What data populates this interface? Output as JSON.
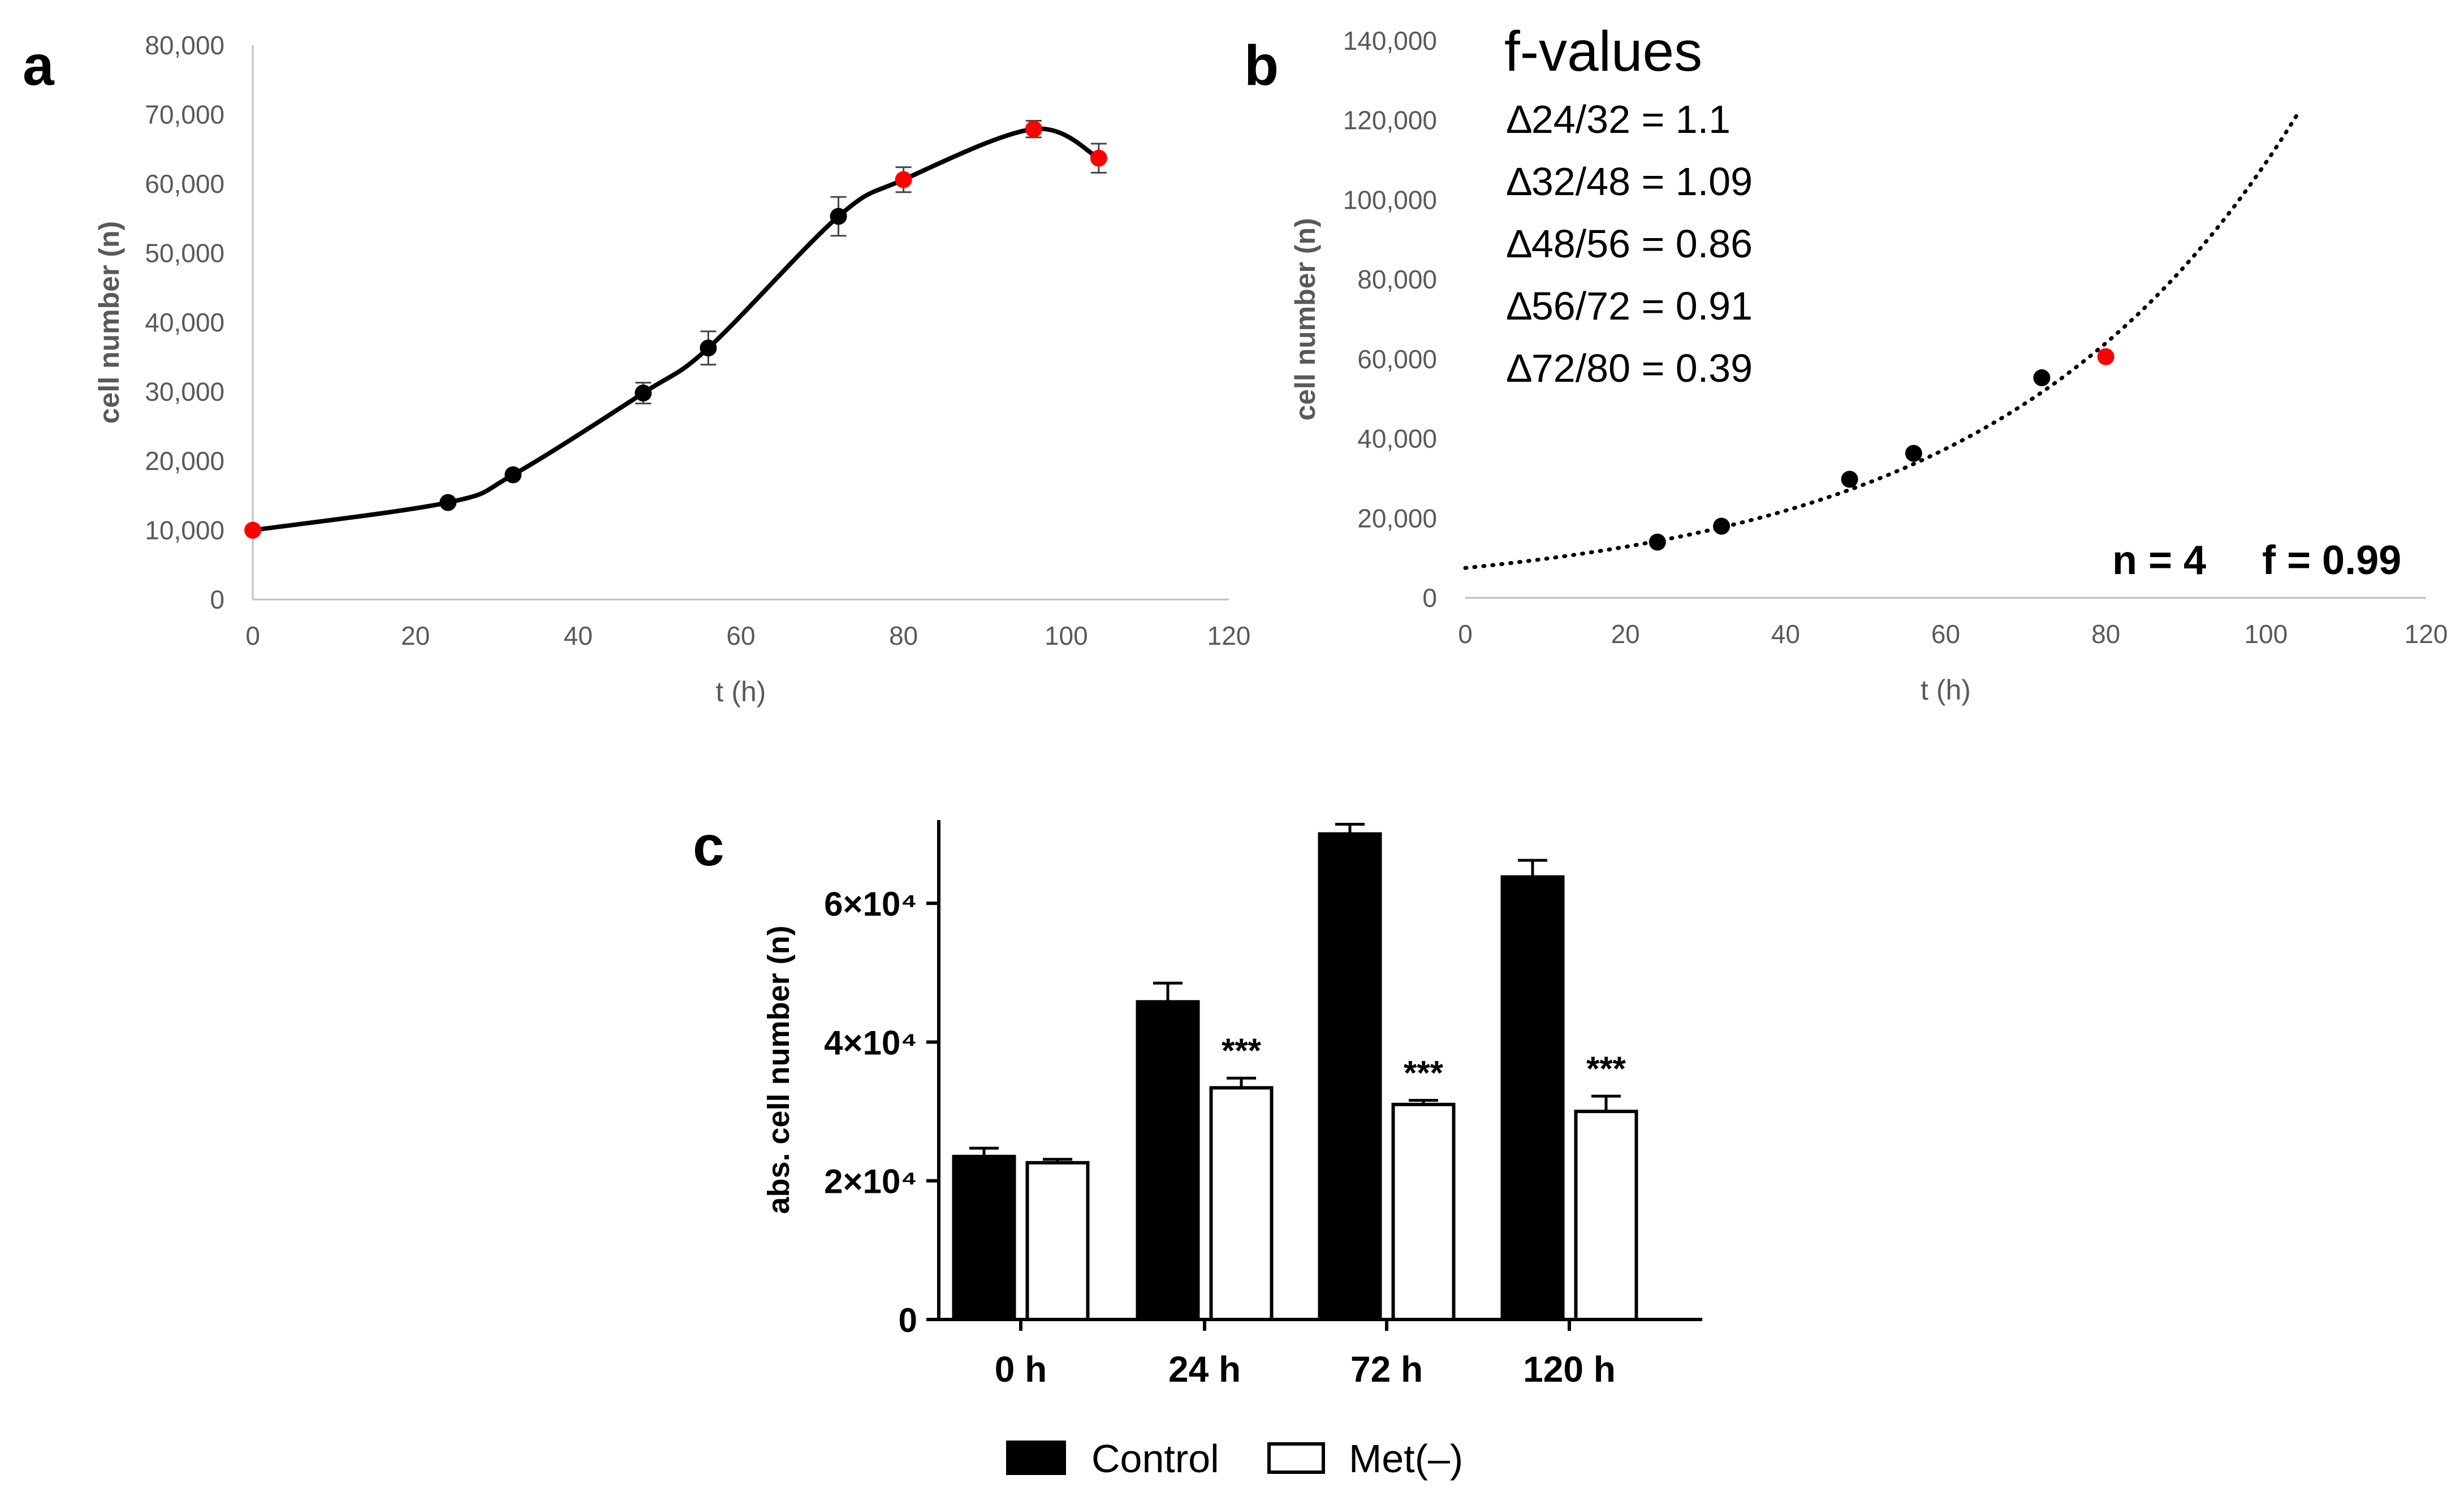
{
  "chart_data": [
    {
      "panel": "a",
      "type": "line",
      "xlabel": "t (h)",
      "ylabel": "cell number (n)",
      "xlim": [
        0,
        120
      ],
      "ylim": [
        0,
        80000
      ],
      "xticks": [
        0,
        20,
        40,
        60,
        80,
        100,
        120
      ],
      "yticks": [
        0,
        10000,
        20000,
        30000,
        40000,
        50000,
        60000,
        70000,
        80000
      ],
      "ytick_labels": [
        "0",
        "10,000",
        "20,000",
        "30,000",
        "40,000",
        "50,000",
        "60,000",
        "70,000",
        "80,000"
      ],
      "points": [
        {
          "x": 0,
          "y": 10000,
          "err": 0,
          "color": "#ff0000"
        },
        {
          "x": 24,
          "y": 14000,
          "err": 0,
          "color": "#000000"
        },
        {
          "x": 32,
          "y": 18000,
          "err": 0,
          "color": "#000000"
        },
        {
          "x": 48,
          "y": 29800,
          "err": 1500,
          "color": "#000000"
        },
        {
          "x": 56,
          "y": 36300,
          "err": 2400,
          "color": "#000000"
        },
        {
          "x": 72,
          "y": 55300,
          "err": 2800,
          "color": "#000000"
        },
        {
          "x": 80,
          "y": 60600,
          "err": 1800,
          "color": "#ff0000"
        },
        {
          "x": 96,
          "y": 67900,
          "err": 1200,
          "color": "#ff0000"
        },
        {
          "x": 104,
          "y": 63700,
          "err": 2100,
          "color": "#ff0000"
        }
      ]
    },
    {
      "panel": "b",
      "type": "scatter",
      "xlabel": "t (h)",
      "ylabel": "cell number (n)",
      "xlim": [
        0,
        120
      ],
      "ylim": [
        0,
        140000
      ],
      "xticks": [
        0,
        20,
        40,
        60,
        80,
        100,
        120
      ],
      "yticks": [
        0,
        20000,
        40000,
        60000,
        80000,
        100000,
        120000,
        140000
      ],
      "ytick_labels": [
        "0",
        "20,000",
        "40,000",
        "60,000",
        "80,000",
        "100,000",
        "120,000",
        "140,000"
      ],
      "points": [
        {
          "x": 24,
          "y": 14000,
          "color": "#000000"
        },
        {
          "x": 32,
          "y": 18000,
          "color": "#000000"
        },
        {
          "x": 48,
          "y": 29800,
          "color": "#000000"
        },
        {
          "x": 56,
          "y": 36300,
          "color": "#000000"
        },
        {
          "x": 72,
          "y": 55300,
          "color": "#000000"
        },
        {
          "x": 80,
          "y": 60600,
          "color": "#ff0000"
        }
      ],
      "trendline": {
        "style": "dotted",
        "a": 7500,
        "b": 0.0268,
        "x_from": 0,
        "x_to": 104
      },
      "fvalues_title": "f-values",
      "fvalues": [
        "∆24/32 = 1.1",
        "∆32/48 = 1.09",
        "∆48/56 = 0.86",
        "∆56/72 = 0.91",
        "∆72/80 = 0.39"
      ],
      "n_label": "n = 4",
      "f_label": "f = 0.99"
    },
    {
      "panel": "c",
      "type": "bar",
      "ylabel": "abs. cell number (n)",
      "categories": [
        "0 h",
        "24 h",
        "72 h",
        "120 h"
      ],
      "ylim": [
        0,
        72000
      ],
      "yticks": [
        0,
        20000,
        40000,
        60000
      ],
      "ytick_labels": [
        "0",
        "2×10⁴",
        "4×10⁴",
        "6×10⁴"
      ],
      "series": [
        {
          "name": "Control",
          "fill": "#000000",
          "values": [
            23500,
            45800,
            70000,
            63800
          ],
          "err": [
            1200,
            2700,
            1400,
            2400
          ]
        },
        {
          "name": "Met(–)",
          "fill": "#ffffff",
          "values": [
            22600,
            33400,
            31000,
            30000
          ],
          "err": [
            500,
            1400,
            600,
            2200
          ]
        }
      ],
      "significance": [
        "",
        "***",
        "***",
        "***"
      ]
    }
  ]
}
